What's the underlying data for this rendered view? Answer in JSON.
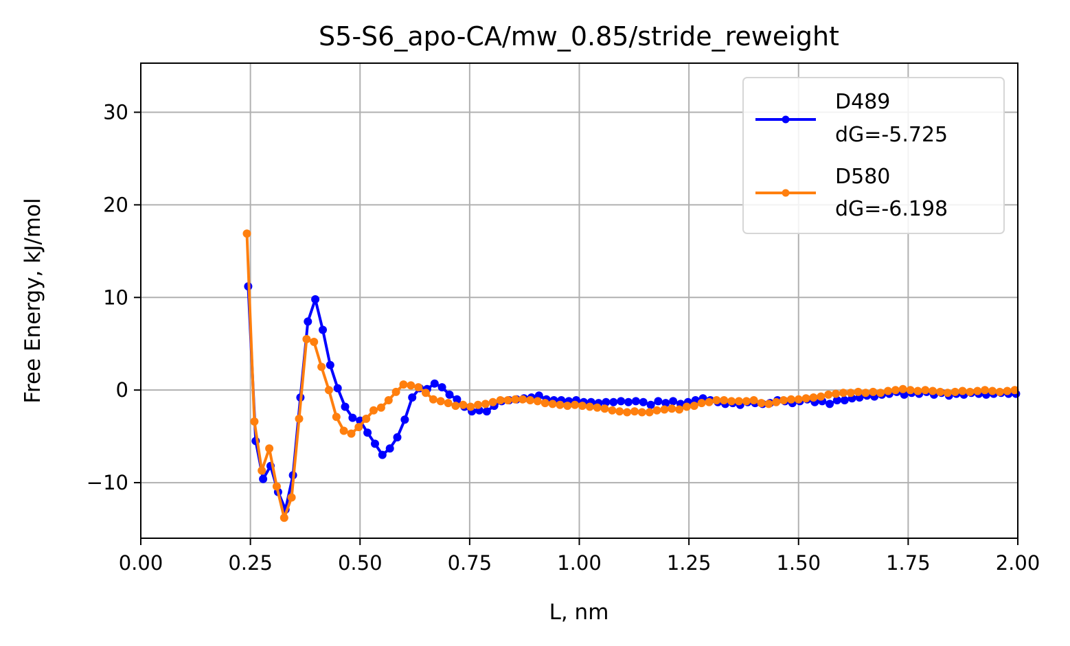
{
  "chart_data": {
    "type": "line",
    "title": "S5-S6_apo-CA/mw_0.85/stride_reweight",
    "xlabel": "L, nm",
    "ylabel": "Free Energy, kJ/mol",
    "xlim": [
      0.0,
      2.0
    ],
    "ylim": [
      -16,
      35.3
    ],
    "xticks": [
      0.0,
      0.25,
      0.5,
      0.75,
      1.0,
      1.25,
      1.5,
      1.75,
      2.0
    ],
    "xtick_labels": [
      "0.00",
      "0.25",
      "0.50",
      "0.75",
      "1.00",
      "1.25",
      "1.50",
      "1.75",
      "2.00"
    ],
    "yticks": [
      -10,
      0,
      10,
      20,
      30
    ],
    "ytick_labels": [
      "−10",
      "0",
      "10",
      "20",
      "30"
    ],
    "grid": true,
    "legend_position": "top-right",
    "series": [
      {
        "name": "D489",
        "label_lines": [
          "D489",
          "dG=-5.725"
        ],
        "color": "#0000ff",
        "x": [
          0.245,
          0.262,
          0.279,
          0.296,
          0.313,
          0.33,
          0.347,
          0.364,
          0.381,
          0.398,
          0.415,
          0.432,
          0.449,
          0.466,
          0.483,
          0.5,
          0.517,
          0.534,
          0.551,
          0.568,
          0.585,
          0.602,
          0.619,
          0.636,
          0.653,
          0.67,
          0.687,
          0.704,
          0.721,
          0.738,
          0.755,
          0.772,
          0.789,
          0.806,
          0.823,
          0.84,
          0.857,
          0.874,
          0.891,
          0.908,
          0.925,
          0.942,
          0.959,
          0.976,
          0.993,
          1.01,
          1.027,
          1.044,
          1.061,
          1.078,
          1.095,
          1.112,
          1.129,
          1.146,
          1.163,
          1.18,
          1.197,
          1.214,
          1.231,
          1.248,
          1.265,
          1.282,
          1.299,
          1.316,
          1.333,
          1.35,
          1.367,
          1.384,
          1.401,
          1.418,
          1.435,
          1.452,
          1.469,
          1.486,
          1.503,
          1.52,
          1.537,
          1.554,
          1.571,
          1.588,
          1.605,
          1.622,
          1.639,
          1.656,
          1.673,
          1.69,
          1.707,
          1.724,
          1.741,
          1.758,
          1.775,
          1.792,
          1.809,
          1.826,
          1.843,
          1.86,
          1.877,
          1.894,
          1.911,
          1.928,
          1.945,
          1.962,
          1.979,
          1.996
        ],
        "y": [
          11.2,
          -5.5,
          -9.6,
          -8.2,
          -11.0,
          -12.9,
          -9.2,
          -0.8,
          7.4,
          9.8,
          6.5,
          2.7,
          0.2,
          -1.8,
          -3.0,
          -3.3,
          -4.6,
          -5.8,
          -7.0,
          -6.3,
          -5.1,
          -3.2,
          -0.8,
          0.2,
          0.1,
          0.7,
          0.3,
          -0.5,
          -1.0,
          -1.8,
          -2.3,
          -2.2,
          -2.3,
          -1.7,
          -1.2,
          -1.1,
          -1.0,
          -0.9,
          -0.8,
          -0.6,
          -1.0,
          -1.1,
          -1.1,
          -1.2,
          -1.1,
          -1.3,
          -1.3,
          -1.4,
          -1.3,
          -1.3,
          -1.2,
          -1.3,
          -1.2,
          -1.3,
          -1.6,
          -1.2,
          -1.4,
          -1.2,
          -1.5,
          -1.3,
          -1.1,
          -0.9,
          -1.1,
          -1.3,
          -1.5,
          -1.4,
          -1.6,
          -1.3,
          -1.4,
          -1.5,
          -1.4,
          -1.1,
          -1.2,
          -1.4,
          -1.2,
          -1.0,
          -1.3,
          -1.2,
          -1.5,
          -1.1,
          -1.1,
          -0.9,
          -0.8,
          -0.6,
          -0.7,
          -0.5,
          -0.4,
          -0.2,
          -0.5,
          -0.3,
          -0.4,
          -0.2,
          -0.5,
          -0.3,
          -0.6,
          -0.4,
          -0.5,
          -0.3,
          -0.4,
          -0.5,
          -0.4,
          -0.3,
          -0.4,
          -0.4
        ]
      },
      {
        "name": "D580",
        "label_lines": [
          "D580",
          "dG=-6.198"
        ],
        "color": "#ff7f0e",
        "x": [
          0.242,
          0.259,
          0.276,
          0.293,
          0.31,
          0.327,
          0.344,
          0.361,
          0.378,
          0.395,
          0.412,
          0.429,
          0.446,
          0.463,
          0.48,
          0.497,
          0.514,
          0.531,
          0.548,
          0.565,
          0.582,
          0.599,
          0.616,
          0.633,
          0.65,
          0.667,
          0.684,
          0.701,
          0.718,
          0.735,
          0.752,
          0.769,
          0.786,
          0.803,
          0.82,
          0.837,
          0.854,
          0.871,
          0.888,
          0.905,
          0.922,
          0.939,
          0.956,
          0.973,
          0.99,
          1.007,
          1.024,
          1.041,
          1.058,
          1.075,
          1.092,
          1.109,
          1.126,
          1.143,
          1.16,
          1.177,
          1.194,
          1.211,
          1.228,
          1.245,
          1.262,
          1.279,
          1.296,
          1.313,
          1.33,
          1.347,
          1.364,
          1.381,
          1.398,
          1.415,
          1.432,
          1.449,
          1.466,
          1.483,
          1.5,
          1.517,
          1.534,
          1.551,
          1.568,
          1.585,
          1.602,
          1.619,
          1.636,
          1.653,
          1.67,
          1.687,
          1.704,
          1.721,
          1.738,
          1.755,
          1.772,
          1.789,
          1.806,
          1.823,
          1.84,
          1.857,
          1.874,
          1.891,
          1.908,
          1.925,
          1.942,
          1.959,
          1.976,
          1.993
        ],
        "y": [
          16.9,
          -3.4,
          -8.7,
          -6.3,
          -10.4,
          -13.8,
          -11.6,
          -3.1,
          5.5,
          5.2,
          2.5,
          0.0,
          -2.9,
          -4.4,
          -4.7,
          -4.0,
          -3.1,
          -2.2,
          -1.9,
          -1.1,
          -0.2,
          0.6,
          0.5,
          0.3,
          -0.3,
          -1.0,
          -1.2,
          -1.4,
          -1.7,
          -1.6,
          -1.8,
          -1.6,
          -1.5,
          -1.3,
          -1.1,
          -1.1,
          -1.0,
          -1.0,
          -1.1,
          -1.2,
          -1.4,
          -1.5,
          -1.6,
          -1.7,
          -1.6,
          -1.7,
          -1.8,
          -1.9,
          -2.0,
          -2.2,
          -2.3,
          -2.4,
          -2.3,
          -2.4,
          -2.4,
          -2.2,
          -2.1,
          -2.0,
          -2.1,
          -1.8,
          -1.7,
          -1.4,
          -1.3,
          -1.1,
          -1.1,
          -1.2,
          -1.2,
          -1.2,
          -1.1,
          -1.4,
          -1.5,
          -1.3,
          -1.1,
          -1.0,
          -1.0,
          -0.9,
          -0.8,
          -0.7,
          -0.5,
          -0.4,
          -0.3,
          -0.3,
          -0.2,
          -0.3,
          -0.2,
          -0.3,
          -0.1,
          0.0,
          0.1,
          0.0,
          -0.1,
          0.0,
          -0.1,
          -0.2,
          -0.3,
          -0.2,
          -0.1,
          -0.2,
          -0.1,
          0.0,
          -0.1,
          -0.2,
          -0.1,
          0.0
        ]
      }
    ]
  }
}
